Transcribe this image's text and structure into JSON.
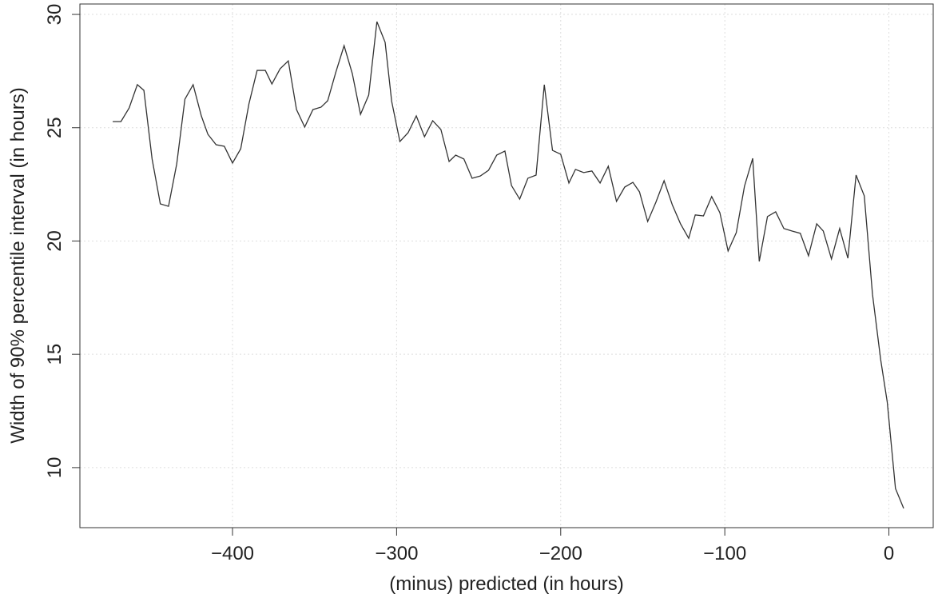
{
  "chart_data": {
    "type": "line",
    "x_label": "(minus) predicted (in hours)",
    "y_label": "Width of 90% percentile interval (in hours)",
    "x": [
      -473,
      -468,
      -463,
      -458,
      -454,
      -449,
      -444,
      -439,
      -434,
      -429,
      -424,
      -419,
      -415,
      -410,
      -405,
      -400,
      -395,
      -390,
      -385,
      -380,
      -376,
      -371,
      -366,
      -361,
      -356,
      -351,
      -346,
      -342,
      -337,
      -332,
      -327,
      -322,
      -317,
      -312,
      -307,
      -303,
      -298,
      -293,
      -288,
      -283,
      -278,
      -273,
      -268,
      -264,
      -259,
      -254,
      -249,
      -244,
      -239,
      -234,
      -230,
      -225,
      -220,
      -215,
      -210,
      -205,
      -200,
      -195,
      -191,
      -186,
      -181,
      -176,
      -171,
      -166,
      -161,
      -156,
      -152,
      -147,
      -142,
      -137,
      -132,
      -127,
      -122,
      -118,
      -113,
      -108,
      -103,
      -98,
      -93,
      -88,
      -83,
      -79,
      -74,
      -69,
      -64,
      -59,
      -54,
      -49,
      -44,
      -40,
      -35,
      -30,
      -25,
      -20,
      -15,
      -10,
      -5,
      -1,
      4,
      9
    ],
    "series": [
      {
        "name": "width",
        "color": "#333333",
        "values": [
          25.27,
          25.27,
          25.87,
          26.9,
          26.65,
          23.62,
          21.64,
          21.53,
          23.4,
          26.26,
          26.9,
          25.52,
          24.71,
          24.25,
          24.18,
          23.44,
          24.07,
          26.05,
          27.53,
          27.53,
          26.93,
          27.6,
          27.95,
          25.8,
          25.03,
          25.8,
          25.91,
          26.19,
          27.46,
          28.62,
          27.39,
          25.59,
          26.44,
          29.68,
          28.77,
          26.16,
          24.39,
          24.78,
          25.52,
          24.6,
          25.31,
          24.92,
          23.51,
          23.79,
          23.62,
          22.77,
          22.87,
          23.12,
          23.79,
          23.97,
          22.45,
          21.85,
          22.77,
          22.91,
          26.9,
          24.0,
          23.83,
          22.56,
          23.16,
          23.02,
          23.09,
          22.56,
          23.3,
          21.75,
          22.38,
          22.59,
          22.17,
          20.86,
          21.71,
          22.66,
          21.6,
          20.76,
          20.12,
          21.15,
          21.11,
          21.96,
          21.25,
          19.56,
          20.37,
          22.42,
          23.65,
          19.1,
          21.08,
          21.29,
          20.55,
          20.44,
          20.34,
          19.35,
          20.76,
          20.44,
          19.21,
          20.55,
          19.24,
          22.91,
          21.99,
          17.65,
          14.76,
          12.89,
          9.08,
          8.2
        ]
      }
    ],
    "xlim": [
      -493,
      27
    ],
    "ylim": [
      7.35,
      30.46
    ],
    "xticks": [
      {
        "value": -400,
        "label": "−400"
      },
      {
        "value": -300,
        "label": "−300"
      },
      {
        "value": -200,
        "label": "−200"
      },
      {
        "value": -100,
        "label": "−100"
      },
      0
    ],
    "yticks": [
      10,
      15,
      20,
      25,
      30
    ],
    "grid": true
  }
}
